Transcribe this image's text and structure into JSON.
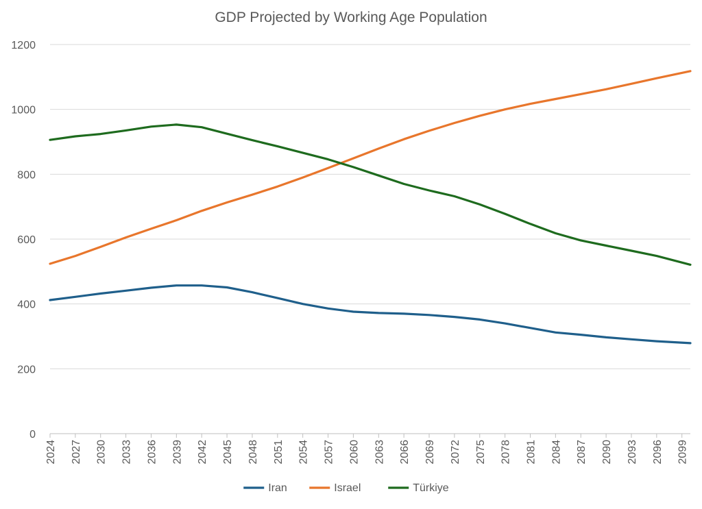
{
  "chart_data": {
    "type": "line",
    "title": "GDP Projected by Working Age Population",
    "xlabel": "",
    "ylabel": "",
    "ylim": [
      0,
      1200
    ],
    "yticks": [
      0,
      200,
      400,
      600,
      800,
      1000,
      1200
    ],
    "xlim": [
      2024,
      2100
    ],
    "xticks": [
      2024,
      2027,
      2030,
      2033,
      2036,
      2039,
      2042,
      2045,
      2048,
      2051,
      2054,
      2057,
      2060,
      2063,
      2066,
      2069,
      2072,
      2075,
      2078,
      2081,
      2084,
      2087,
      2090,
      2093,
      2096,
      2099
    ],
    "grid": "horizontal",
    "legend": "bottom",
    "series": [
      {
        "name": "Iran",
        "color": "#1f5f8b",
        "x": [
          2024,
          2027,
          2030,
          2033,
          2036,
          2039,
          2042,
          2045,
          2048,
          2051,
          2054,
          2057,
          2060,
          2063,
          2066,
          2069,
          2072,
          2075,
          2078,
          2081,
          2084,
          2087,
          2090,
          2093,
          2096,
          2100
        ],
        "y": [
          412,
          422,
          432,
          441,
          450,
          457,
          457,
          451,
          436,
          418,
          400,
          386,
          376,
          372,
          370,
          366,
          360,
          352,
          340,
          326,
          312,
          305,
          297,
          291,
          285,
          279
        ]
      },
      {
        "name": "Israel",
        "color": "#e8762c",
        "x": [
          2024,
          2027,
          2030,
          2033,
          2036,
          2039,
          2042,
          2045,
          2048,
          2051,
          2054,
          2057,
          2060,
          2063,
          2066,
          2069,
          2072,
          2075,
          2078,
          2081,
          2084,
          2087,
          2090,
          2093,
          2096,
          2100
        ],
        "y": [
          524,
          548,
          576,
          605,
          632,
          658,
          687,
          713,
          737,
          762,
          790,
          819,
          849,
          879,
          908,
          934,
          958,
          980,
          1000,
          1017,
          1032,
          1047,
          1062,
          1079,
          1096,
          1118
        ]
      },
      {
        "name": "Türkiye",
        "color": "#1e6b1e",
        "x": [
          2024,
          2027,
          2030,
          2033,
          2036,
          2039,
          2042,
          2045,
          2048,
          2051,
          2054,
          2057,
          2060,
          2063,
          2066,
          2069,
          2072,
          2075,
          2078,
          2081,
          2084,
          2087,
          2090,
          2093,
          2096,
          2100
        ],
        "y": [
          906,
          917,
          924,
          935,
          947,
          953,
          945,
          925,
          905,
          886,
          866,
          846,
          822,
          796,
          770,
          750,
          732,
          707,
          678,
          647,
          618,
          596,
          580,
          564,
          548,
          521
        ]
      }
    ]
  }
}
